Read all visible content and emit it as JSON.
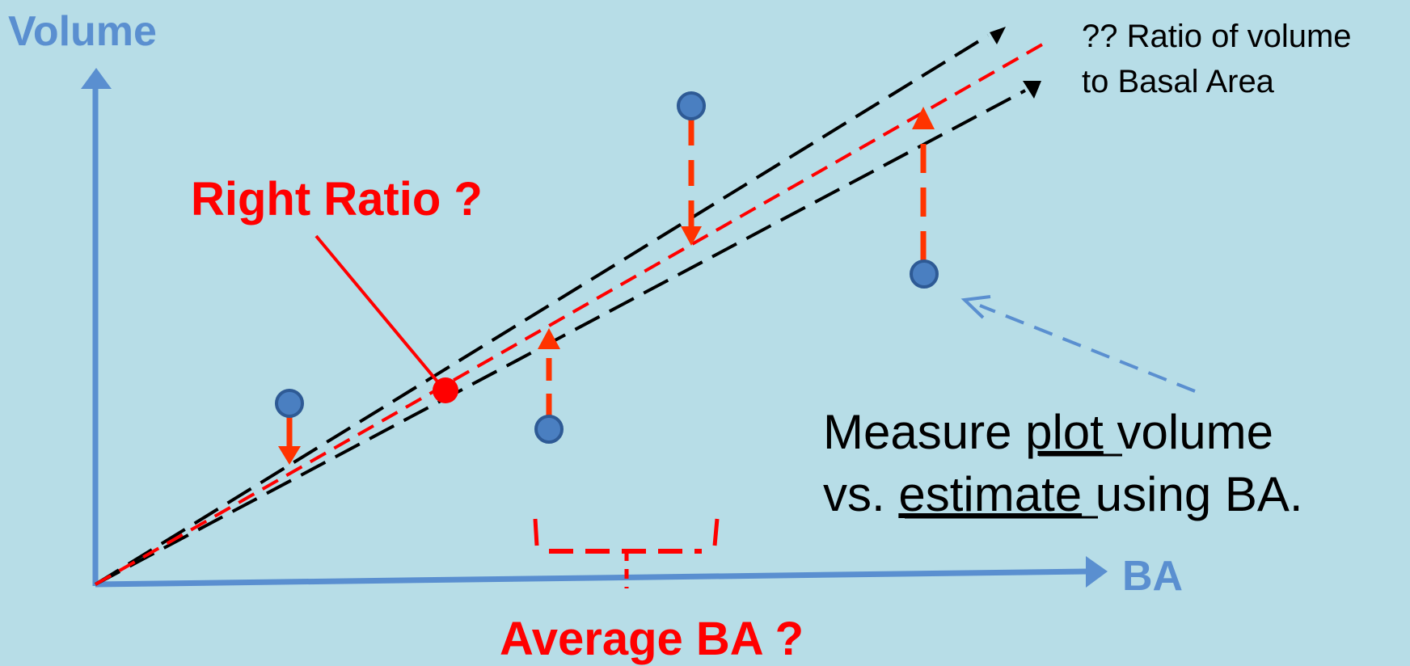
{
  "axes": {
    "y_label": "Volume",
    "x_label": "BA",
    "color": "#5a8fd0"
  },
  "labels": {
    "right_ratio": "Right Ratio ?",
    "average_ba": "Average BA ?",
    "ratio_line1": "?? Ratio of volume",
    "ratio_line2": "to Basal Area",
    "measure_line1_pre": "Measure ",
    "measure_line1_u": "plot",
    "measure_line1_post": " volume",
    "measure_line2_pre": "vs. ",
    "measure_line2_u": "estimate",
    "measure_line2_post": " using BA."
  },
  "colors": {
    "background": "#b7dde7",
    "plot_point": "#4a7fc1",
    "residual_arrow": "#ff3300",
    "ratio_line": "#ff0000",
    "bound_line": "#000000",
    "pointer_arrow": "#5a8fd0"
  }
}
